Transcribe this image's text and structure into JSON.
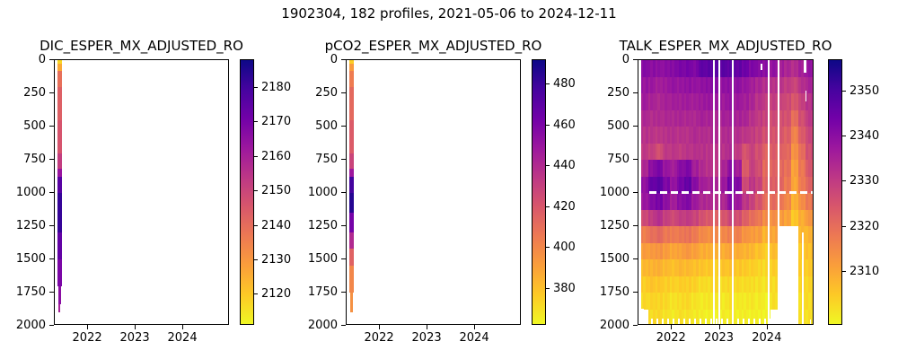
{
  "header": {
    "suptitle": "1902304, 182 profiles, 2021-05-06 to 2024-12-11"
  },
  "axis": {
    "depth_ticks": [
      0,
      250,
      500,
      750,
      1000,
      1250,
      1500,
      1750,
      2000
    ],
    "year_ticks": [
      2022,
      2023,
      2024
    ],
    "depth_range": [
      0,
      2000
    ],
    "time_range": [
      2021.3,
      2024.98
    ]
  },
  "colormap": {
    "name": "plasma_r",
    "plasma_stops": [
      "#0d0887",
      "#46039f",
      "#7201a8",
      "#9c179e",
      "#bd3786",
      "#d8576b",
      "#ed7953",
      "#fa9e3b",
      "#fdc926",
      "#f0f724"
    ]
  },
  "chart_data": [
    {
      "type": "heatmap",
      "title": "DIC_ESPER_MX_ADJUSTED_RO",
      "vmin": 2111,
      "vmax": 2188,
      "colorbar_ticks": [
        2120,
        2130,
        2140,
        2150,
        2160,
        2170,
        2180
      ],
      "data_time_extent": [
        2021.35,
        2021.45
      ],
      "profile": [
        [
          0,
          30,
          2117
        ],
        [
          30,
          80,
          2126
        ],
        [
          80,
          200,
          2139
        ],
        [
          200,
          450,
          2143
        ],
        [
          450,
          700,
          2146
        ],
        [
          700,
          820,
          2152
        ],
        [
          820,
          880,
          2163
        ],
        [
          880,
          1000,
          2176
        ],
        [
          1000,
          1300,
          2182
        ],
        [
          1300,
          1500,
          2174
        ],
        [
          1500,
          1700,
          2169
        ],
        [
          1700,
          1840,
          2166
        ],
        [
          1840,
          1900,
          2160
        ]
      ]
    },
    {
      "type": "heatmap",
      "title": "pCO2_ESPER_MX_ADJUSTED_RO",
      "vmin": 362,
      "vmax": 492,
      "colorbar_ticks": [
        380,
        400,
        420,
        440,
        460,
        480
      ],
      "data_time_extent": [
        2021.35,
        2021.45
      ],
      "profile": [
        [
          0,
          30,
          375
        ],
        [
          30,
          80,
          392
        ],
        [
          80,
          200,
          404
        ],
        [
          200,
          450,
          412
        ],
        [
          450,
          700,
          418
        ],
        [
          700,
          820,
          428
        ],
        [
          820,
          880,
          448
        ],
        [
          880,
          1000,
          478
        ],
        [
          1000,
          1150,
          486
        ],
        [
          1150,
          1300,
          462
        ],
        [
          1300,
          1420,
          440
        ],
        [
          1420,
          1550,
          415
        ],
        [
          1550,
          1750,
          400
        ],
        [
          1750,
          1900,
          396
        ]
      ]
    },
    {
      "type": "heatmap",
      "title": "TALK_ESPER_MX_ADJUSTED_RO",
      "vmin": 2298,
      "vmax": 2357,
      "colorbar_ticks": [
        2310,
        2320,
        2330,
        2340,
        2350
      ],
      "grid": {
        "time_extent": [
          2021.35,
          2024.95
        ],
        "depth_extent": [
          0,
          2000
        ],
        "n_cols": 24,
        "n_rows": 16,
        "values": [
          [
            2341,
            2340,
            2339,
            2340,
            2341,
            2342,
            2343,
            2342,
            2346,
            2347,
            2348,
            2347,
            2347,
            2346,
            2344,
            2342,
            2341,
            2340,
            2339,
            2336,
            2334,
            2333,
            2336,
            2338
          ],
          [
            2338,
            2337,
            2336,
            2337,
            2338,
            2338,
            2339,
            2338,
            2339,
            2340,
            2340,
            2339,
            2340,
            2339,
            2338,
            2336,
            2334,
            2333,
            2332,
            2331,
            2330,
            2328,
            2332,
            2335
          ],
          [
            2336,
            2335,
            2334,
            2335,
            2336,
            2336,
            2336,
            2336,
            2337,
            2337,
            2337,
            2337,
            2338,
            2337,
            2336,
            2334,
            2332,
            2330,
            2329,
            2328,
            2327,
            2324,
            2329,
            2332
          ],
          [
            2334,
            2333,
            2333,
            2334,
            2334,
            2334,
            2334,
            2334,
            2335,
            2335,
            2335,
            2335,
            2336,
            2335,
            2334,
            2332,
            2330,
            2328,
            2327,
            2326,
            2325,
            2320,
            2326,
            2330
          ],
          [
            2332,
            2331,
            2331,
            2332,
            2332,
            2332,
            2332,
            2333,
            2333,
            2333,
            2333,
            2333,
            2334,
            2332,
            2331,
            2330,
            2328,
            2326,
            2325,
            2324,
            2323,
            2316,
            2323,
            2328
          ],
          [
            2330,
            2329,
            2326,
            2330,
            2331,
            2330,
            2331,
            2332,
            2332,
            2331,
            2331,
            2332,
            2333,
            2330,
            2325,
            2328,
            2326,
            2322,
            2323,
            2322,
            2321,
            2313,
            2320,
            2326
          ],
          [
            2334,
            2340,
            2342,
            2338,
            2336,
            2340,
            2342,
            2336,
            2333,
            2332,
            2331,
            2334,
            2340,
            2336,
            2323,
            2329,
            2326,
            2320,
            2322,
            2321,
            2319,
            2311,
            2318,
            2324
          ],
          [
            2339,
            2345,
            2347,
            2342,
            2338,
            2343,
            2346,
            2340,
            2336,
            2335,
            2334,
            2337,
            2344,
            2341,
            2327,
            2331,
            2328,
            2322,
            2323,
            2321,
            2318,
            2310,
            2317,
            2322
          ],
          [
            2337,
            2341,
            2343,
            2339,
            2336,
            2340,
            2341,
            2337,
            2334,
            2333,
            2332,
            2334,
            2340,
            2337,
            2331,
            2328,
            2325,
            2320,
            2320,
            2318,
            2315,
            2308,
            2314,
            2318
          ],
          [
            2327,
            2330,
            2332,
            2329,
            2327,
            2329,
            2330,
            2328,
            2325,
            2324,
            2323,
            2324,
            2328,
            2326,
            2322,
            2320,
            2318,
            2314,
            2314,
            2312,
            2310,
            2305,
            2309,
            2312
          ],
          [
            2317,
            2319,
            2321,
            2318,
            2317,
            2318,
            2319,
            2317,
            2315,
            2314,
            2314,
            2315,
            2317,
            2316,
            2313,
            2312,
            2311,
            2308,
            2310,
            null,
            null,
            null,
            2307,
            2308
          ],
          [
            2311,
            2312,
            2313,
            2311,
            2310,
            2311,
            2312,
            2311,
            2309,
            2308,
            2308,
            2309,
            2310,
            2309,
            2308,
            2307,
            2306,
            2304,
            2306,
            null,
            null,
            null,
            2305,
            2306
          ],
          [
            2307,
            2308,
            2308,
            2307,
            2306,
            2307,
            2307,
            2306,
            2305,
            2305,
            2304,
            2305,
            2306,
            2305,
            2304,
            2304,
            2303,
            2302,
            2304,
            null,
            null,
            null,
            2304,
            2304
          ],
          [
            2304,
            2305,
            2305,
            2304,
            2303,
            2304,
            2304,
            2303,
            2302,
            2302,
            2302,
            2302,
            2303,
            2302,
            2302,
            2302,
            2301,
            2301,
            2302,
            null,
            null,
            null,
            2303,
            2303
          ],
          [
            2302,
            2303,
            2303,
            2302,
            2301,
            2302,
            2302,
            2301,
            2300,
            2300,
            2300,
            2300,
            2301,
            2300,
            2300,
            2300,
            2300,
            2299,
            2301,
            null,
            null,
            null,
            2302,
            2302
          ],
          [
            null,
            2302,
            2302,
            2301,
            2300,
            2301,
            2301,
            2300,
            2299,
            2299,
            2299,
            2299,
            2300,
            2299,
            2299,
            2299,
            2299,
            2298,
            null,
            null,
            null,
            null,
            2301,
            2301
          ]
        ]
      },
      "missing": {
        "vertical_lines_t": [
          2022.88,
          2022.99,
          2023.27,
          2024.02,
          2024.23
        ],
        "horizontal_dashed_line": {
          "depth": 1000,
          "t_start": 2021.53,
          "t_end": 2024.95
        },
        "bottom_gap_dashes": {
          "d0": 1945,
          "d1": 2000,
          "t_start": 2021.38,
          "t_end": 2024.08
        },
        "rects": [
          {
            "t0": 2021.35,
            "t1": 2021.42,
            "d0": 1870,
            "d1": 2000
          },
          {
            "t0": 2024.76,
            "t1": 2024.81,
            "d0": 0,
            "d1": 95
          },
          {
            "t0": 2024.8,
            "t1": 2024.82,
            "d0": 230,
            "d1": 310
          },
          {
            "t0": 2023.85,
            "t1": 2023.89,
            "d0": 30,
            "d1": 75
          },
          {
            "t0": 2024.72,
            "t1": 2024.76,
            "d0": 1300,
            "d1": 2000
          },
          {
            "t0": 2024.88,
            "t1": 2024.91,
            "d0": 1950,
            "d1": 2000
          }
        ]
      }
    }
  ]
}
